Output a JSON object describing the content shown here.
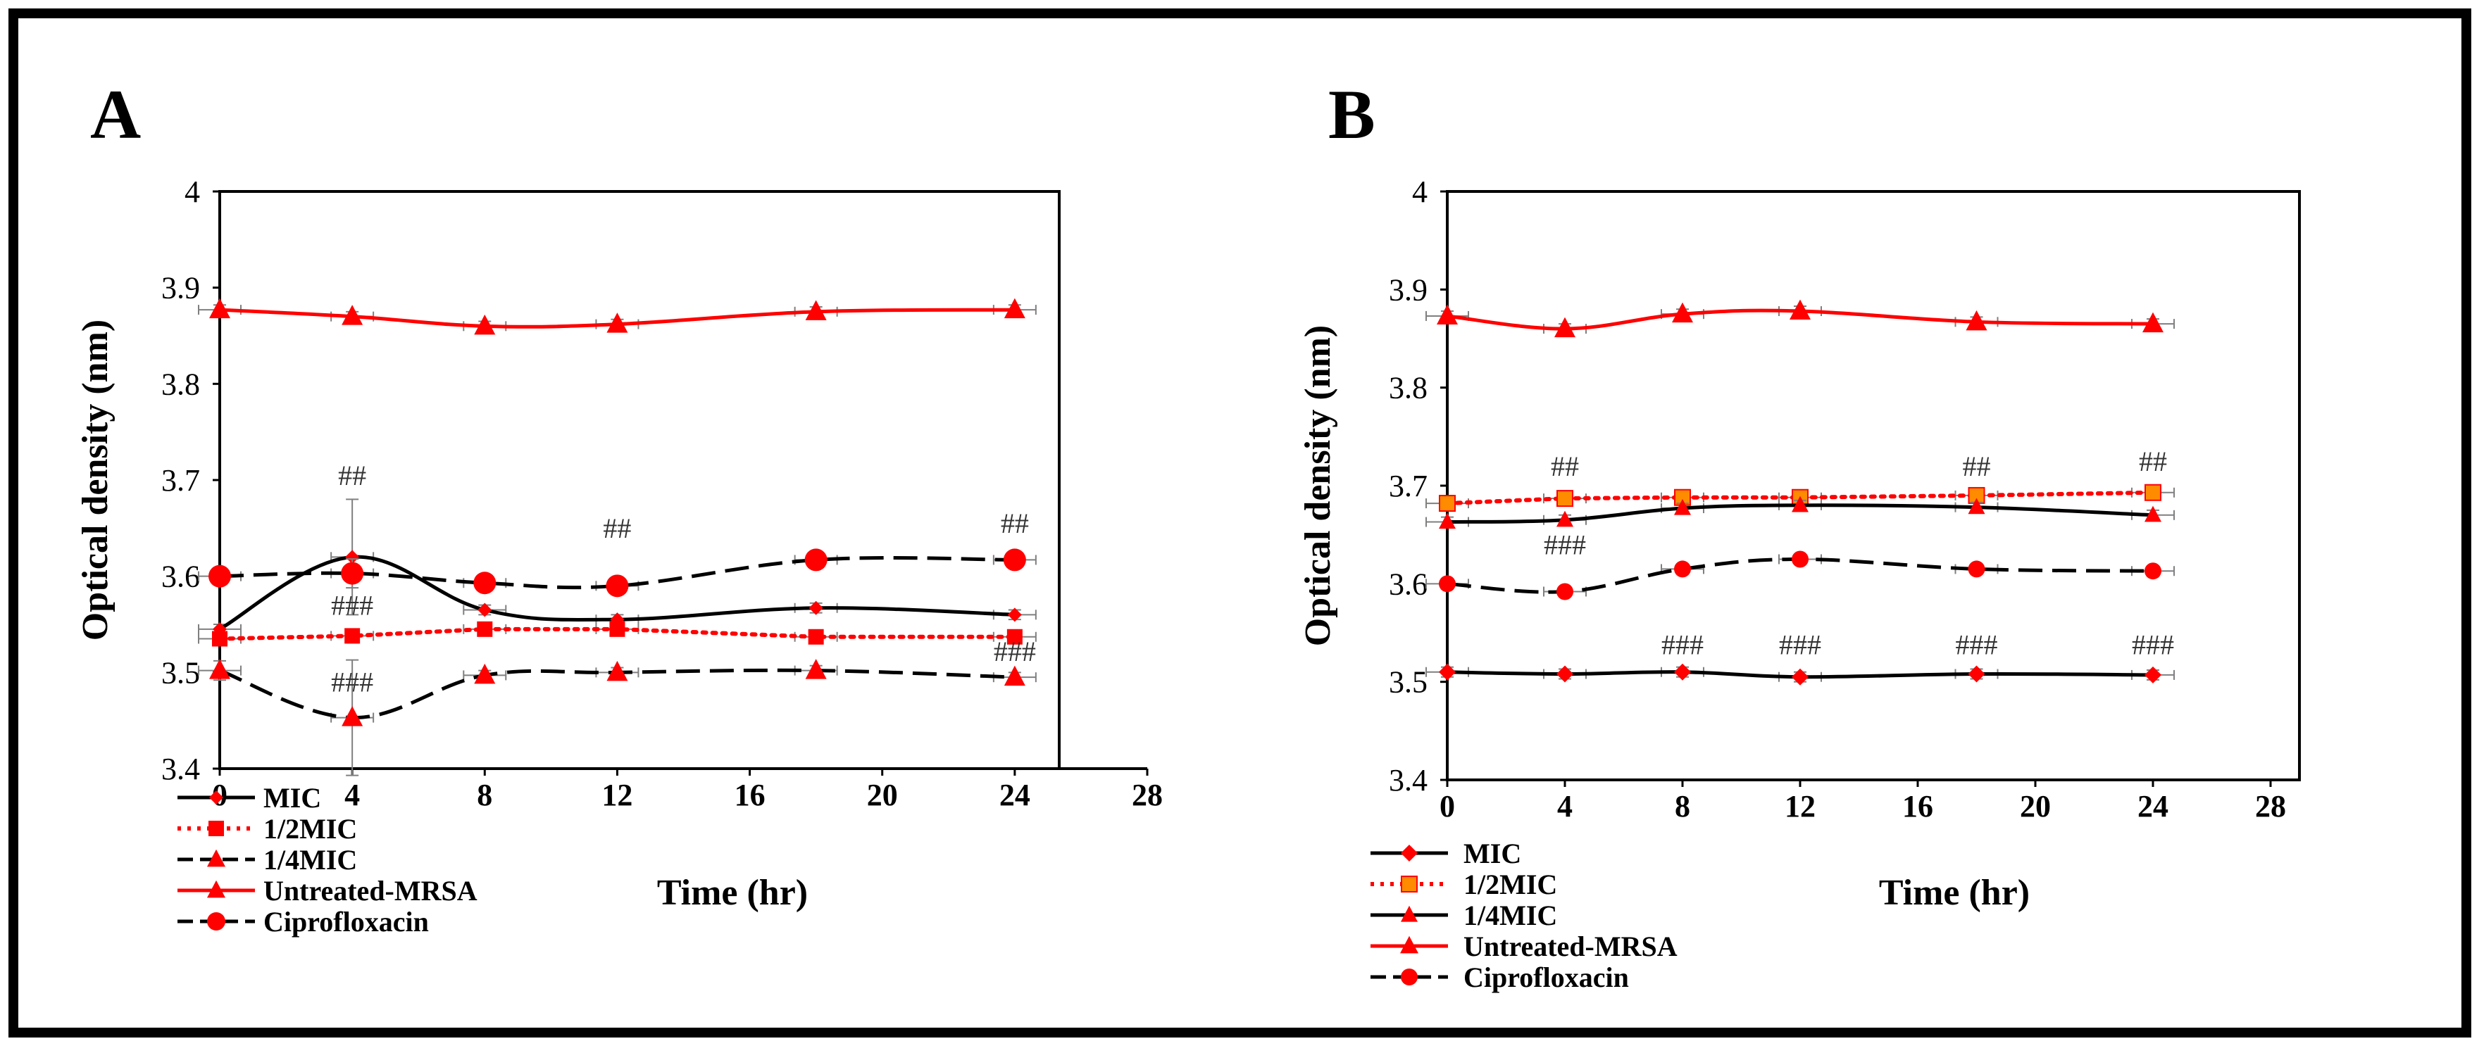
{
  "colors": {
    "red": "#ff0000",
    "black": "#000000",
    "orange": "#ff8c00",
    "grey": "#7f7f7f"
  },
  "chart_data": [
    {
      "type": "line",
      "panel_label": "A",
      "xlabel": "Time (hr)",
      "ylabel": "Optical density (nm)",
      "xlim": [
        0,
        28
      ],
      "ylim": [
        3.4,
        4
      ],
      "xticks": [
        0,
        4,
        8,
        12,
        16,
        20,
        24,
        28
      ],
      "yticks": [
        3.4,
        3.5,
        3.6,
        3.7,
        3.8,
        3.9,
        4
      ],
      "x": [
        0,
        4,
        8,
        12,
        18,
        24
      ],
      "series": [
        {
          "name": "MIC",
          "color": "#ff0000",
          "line_color": "#000000",
          "dash": "",
          "marker": "diamond",
          "msize": 10,
          "smooth": true,
          "values": [
            3.545,
            3.62,
            3.565,
            3.555,
            3.567,
            3.56
          ],
          "errors": [
            0.005,
            0.06,
            0.005,
            0.005,
            0.005,
            0.005
          ]
        },
        {
          "name": "1/2MIC",
          "color": "#ff0000",
          "line_color": "#ff0000",
          "dash": "5,9",
          "marker": "square",
          "msize": 10,
          "smooth": false,
          "values": [
            3.535,
            3.538,
            3.545,
            3.545,
            3.537,
            3.537
          ],
          "errors": [
            0.005,
            0.005,
            0.005,
            0.005,
            0.005,
            0.005
          ]
        },
        {
          "name": "1/4MIC",
          "color": "#ff0000",
          "line_color": "#000000",
          "dash": "34,14",
          "marker": "triangle",
          "msize": 15,
          "smooth": true,
          "values": [
            3.502,
            3.453,
            3.497,
            3.5,
            3.502,
            3.495
          ],
          "errors": [
            0.01,
            0.06,
            0.005,
            0.005,
            0.005,
            0.005
          ]
        },
        {
          "name": "Untreated-MRSA",
          "color": "#ff0000",
          "line_color": "#ff0000",
          "dash": "",
          "marker": "triangle",
          "msize": 15,
          "smooth": true,
          "values": [
            3.877,
            3.87,
            3.86,
            3.862,
            3.875,
            3.877
          ],
          "errors": [
            0.005,
            0.005,
            0.005,
            0.005,
            0.005,
            0.005
          ]
        },
        {
          "name": "Ciprofloxacin",
          "color": "#ff0000",
          "line_color": "#000000",
          "dash": "34,14",
          "marker": "circle",
          "msize": 16,
          "smooth": true,
          "values": [
            3.6,
            3.603,
            3.593,
            3.59,
            3.617,
            3.617
          ],
          "errors": [
            0.005,
            0.015,
            0.005,
            0.005,
            0.005,
            0.005
          ]
        }
      ],
      "annotations": [
        {
          "x": 4,
          "y": 3.695,
          "text": "##"
        },
        {
          "x": 12,
          "y": 3.64,
          "text": "##"
        },
        {
          "x": 24,
          "y": 3.645,
          "text": "##"
        },
        {
          "x": 4,
          "y": 3.56,
          "text": "###"
        },
        {
          "x": 4,
          "y": 3.48,
          "text": "###"
        },
        {
          "x": 24,
          "y": 3.512,
          "text": "###"
        }
      ]
    },
    {
      "type": "line",
      "panel_label": "B",
      "xlabel": "Time (hr)",
      "ylabel": "Optical density (nm)",
      "xlim": [
        0,
        28
      ],
      "ylim": [
        3.4,
        4
      ],
      "xticks": [
        0,
        4,
        8,
        12,
        16,
        20,
        24,
        28
      ],
      "yticks": [
        3.4,
        3.5,
        3.6,
        3.7,
        3.8,
        3.9,
        4
      ],
      "x": [
        0,
        4,
        8,
        12,
        18,
        24
      ],
      "series": [
        {
          "name": "MIC",
          "color": "#ff0000",
          "line_color": "#000000",
          "dash": "",
          "marker": "diamond",
          "msize": 12,
          "smooth": true,
          "values": [
            3.51,
            3.508,
            3.51,
            3.505,
            3.508,
            3.507
          ],
          "errors": [
            0.005,
            0.005,
            0.005,
            0.005,
            0.005,
            0.005
          ]
        },
        {
          "name": "1/2MIC",
          "color": "#ff8c00",
          "line_color": "#ff0000",
          "dash": "5,9",
          "marker": "square",
          "msize": 11,
          "smooth": false,
          "values": [
            3.682,
            3.687,
            3.688,
            3.688,
            3.69,
            3.693
          ],
          "errors": [
            0.005,
            0.005,
            0.005,
            0.005,
            0.005,
            0.005
          ]
        },
        {
          "name": "1/4MIC",
          "color": "#ff0000",
          "line_color": "#000000",
          "dash": "",
          "marker": "triangle",
          "msize": 12,
          "smooth": true,
          "values": [
            3.663,
            3.665,
            3.677,
            3.68,
            3.678,
            3.67
          ],
          "errors": [
            0.005,
            0.005,
            0.005,
            0.005,
            0.005,
            0.005
          ]
        },
        {
          "name": "Untreated-MRSA",
          "color": "#ff0000",
          "line_color": "#ff0000",
          "dash": "",
          "marker": "triangle",
          "msize": 15,
          "smooth": true,
          "values": [
            3.873,
            3.86,
            3.875,
            3.878,
            3.867,
            3.865
          ],
          "errors": [
            0.005,
            0.005,
            0.005,
            0.005,
            0.005,
            0.005
          ]
        },
        {
          "name": "Ciprofloxacin",
          "color": "#ff0000",
          "line_color": "#000000",
          "dash": "34,14",
          "marker": "circle",
          "msize": 12,
          "smooth": true,
          "values": [
            3.6,
            3.592,
            3.615,
            3.625,
            3.615,
            3.613
          ],
          "errors": [
            0.005,
            0.005,
            0.005,
            0.005,
            0.005,
            0.005
          ]
        }
      ],
      "annotations": [
        {
          "x": 4,
          "y": 3.71,
          "text": "##"
        },
        {
          "x": 18,
          "y": 3.71,
          "text": "##"
        },
        {
          "x": 24,
          "y": 3.715,
          "text": "##"
        },
        {
          "x": 4,
          "y": 3.63,
          "text": "###"
        },
        {
          "x": 8,
          "y": 3.528,
          "text": "###"
        },
        {
          "x": 12,
          "y": 3.528,
          "text": "###"
        },
        {
          "x": 18,
          "y": 3.528,
          "text": "###"
        },
        {
          "x": 24,
          "y": 3.528,
          "text": "###"
        }
      ]
    }
  ]
}
